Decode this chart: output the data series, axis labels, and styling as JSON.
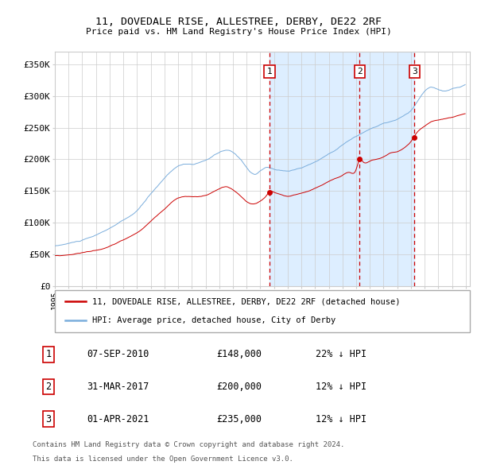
{
  "title": "11, DOVEDALE RISE, ALLESTREE, DERBY, DE22 2RF",
  "subtitle": "Price paid vs. HM Land Registry's House Price Index (HPI)",
  "ylim": [
    0,
    370000
  ],
  "yticks": [
    0,
    50000,
    100000,
    150000,
    200000,
    250000,
    300000,
    350000
  ],
  "ytick_labels": [
    "£0",
    "£50K",
    "£100K",
    "£150K",
    "£200K",
    "£250K",
    "£300K",
    "£350K"
  ],
  "hpi_color": "#7aaddc",
  "property_color": "#cc0000",
  "marker_color": "#cc0000",
  "dashed_color": "#cc0000",
  "shaded_color": "#ddeeff",
  "legend_label_property": "11, DOVEDALE RISE, ALLESTREE, DERBY, DE22 2RF (detached house)",
  "legend_label_hpi": "HPI: Average price, detached house, City of Derby",
  "transactions": [
    {
      "label": "1",
      "date_num": 2010.68,
      "price": 148000,
      "note": "07-SEP-2010",
      "pct": "22%"
    },
    {
      "label": "2",
      "date_num": 2017.25,
      "price": 200000,
      "note": "31-MAR-2017",
      "pct": "12%"
    },
    {
      "label": "3",
      "date_num": 2021.25,
      "price": 235000,
      "note": "01-APR-2021",
      "pct": "12%"
    }
  ],
  "table_rows": [
    [
      "1",
      "07-SEP-2010",
      "£148,000",
      "22% ↓ HPI"
    ],
    [
      "2",
      "31-MAR-2017",
      "£200,000",
      "12% ↓ HPI"
    ],
    [
      "3",
      "01-APR-2021",
      "£235,000",
      "12% ↓ HPI"
    ]
  ],
  "footnote1": "Contains HM Land Registry data © Crown copyright and database right 2024.",
  "footnote2": "This data is licensed under the Open Government Licence v3.0.",
  "background_color": "#ffffff",
  "grid_color": "#cccccc"
}
